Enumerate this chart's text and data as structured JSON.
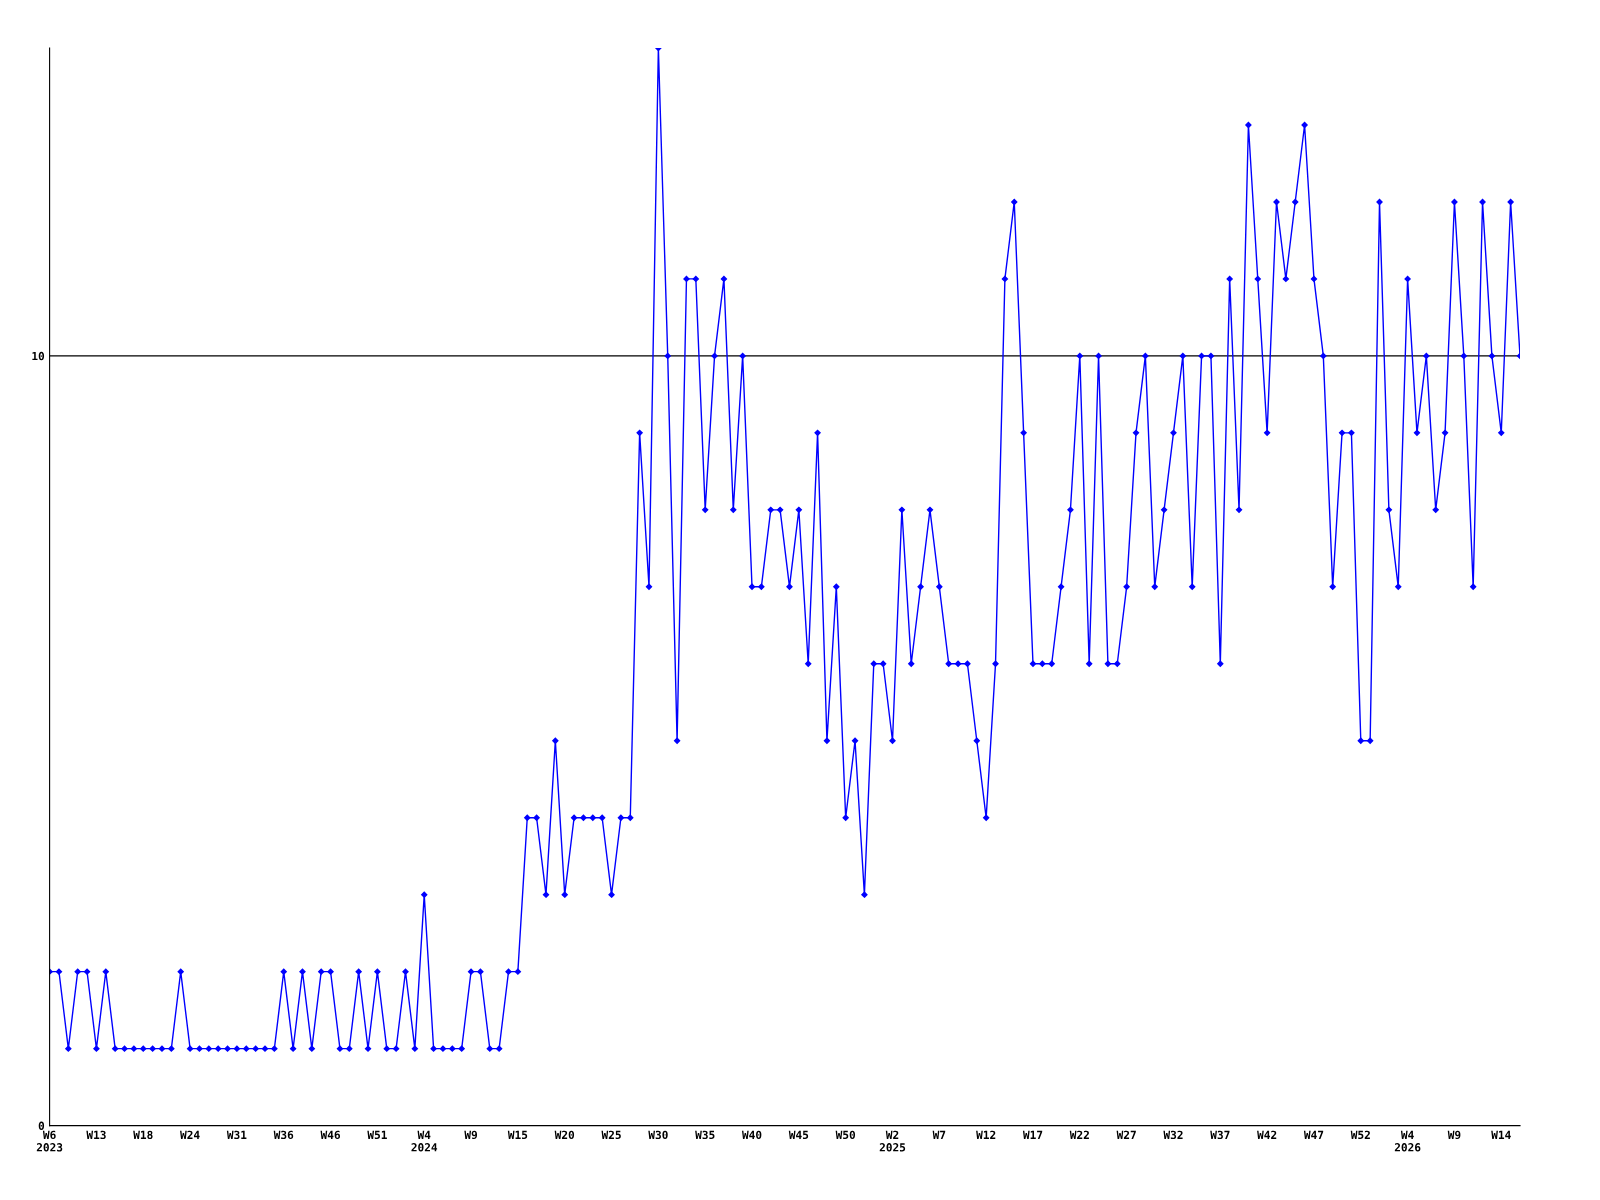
{
  "chart_data": {
    "type": "line",
    "categories": [
      "W6\n2023",
      null,
      null,
      null,
      null,
      "W13",
      null,
      null,
      null,
      null,
      "W18",
      null,
      null,
      null,
      null,
      "W24",
      null,
      null,
      null,
      null,
      "W31",
      null,
      null,
      null,
      null,
      "W36",
      null,
      null,
      null,
      null,
      "W46",
      null,
      null,
      null,
      null,
      "W51",
      null,
      null,
      null,
      null,
      "W4\n2024",
      null,
      null,
      null,
      null,
      "W9",
      null,
      null,
      null,
      null,
      "W15",
      null,
      null,
      null,
      null,
      "W20",
      null,
      null,
      null,
      null,
      "W25",
      null,
      null,
      null,
      null,
      "W30",
      null,
      null,
      null,
      null,
      "W35",
      null,
      null,
      null,
      null,
      "W40",
      null,
      null,
      null,
      null,
      "W45",
      null,
      null,
      null,
      null,
      "W50",
      null,
      null,
      null,
      null,
      "W2\n2025",
      null,
      null,
      null,
      null,
      "W7",
      null,
      null,
      null,
      null,
      "W12",
      null,
      null,
      null,
      null,
      "W17",
      null,
      null,
      null,
      null,
      "W22",
      null,
      null,
      null,
      null,
      "W27",
      null,
      null,
      null,
      null,
      "W32",
      null,
      null,
      null,
      null,
      "W37",
      null,
      null,
      null,
      null,
      "W42",
      null,
      null,
      null,
      null,
      "W47",
      null,
      null,
      null,
      null,
      "W52",
      null,
      null,
      null,
      null,
      "W4\n2026",
      null,
      null,
      null,
      null,
      "W9",
      null,
      null,
      null,
      null,
      "W14",
      null,
      null
    ],
    "series": [
      {
        "color": "#0000ff",
        "values": [
          2,
          2,
          1,
          2,
          2,
          1,
          2,
          1,
          1,
          1,
          1,
          1,
          1,
          1,
          2,
          1,
          1,
          1,
          1,
          1,
          1,
          1,
          1,
          1,
          1,
          2,
          1,
          2,
          1,
          2,
          2,
          1,
          1,
          2,
          1,
          2,
          1,
          1,
          2,
          1,
          3,
          1,
          1,
          1,
          1,
          2,
          2,
          1,
          1,
          2,
          2,
          4,
          4,
          3,
          5,
          3,
          4,
          4,
          4,
          4,
          3,
          4,
          4,
          9,
          7,
          14,
          10,
          5,
          11,
          11,
          8,
          10,
          11,
          8,
          10,
          7,
          7,
          8,
          8,
          7,
          8,
          6,
          9,
          5,
          7,
          4,
          5,
          3,
          6,
          6,
          5,
          8,
          6,
          7,
          8,
          7,
          6,
          6,
          6,
          5,
          4,
          6,
          11,
          12,
          9,
          6,
          6,
          6,
          7,
          8,
          10,
          6,
          10,
          6,
          6,
          7,
          9,
          10,
          7,
          8,
          9,
          10,
          7,
          10,
          10,
          6,
          11,
          8,
          13,
          11,
          9,
          12,
          11,
          12,
          13,
          11,
          10,
          7,
          9,
          9,
          5,
          5,
          12,
          8,
          7,
          11,
          9,
          10,
          8,
          9,
          12,
          10,
          7,
          12,
          10,
          9,
          12,
          10
        ]
      }
    ],
    "ylim": [
      0,
      14
    ],
    "yticks": [
      0,
      10
    ],
    "grid": "y",
    "marker": "diamond",
    "line_style": "solid"
  }
}
